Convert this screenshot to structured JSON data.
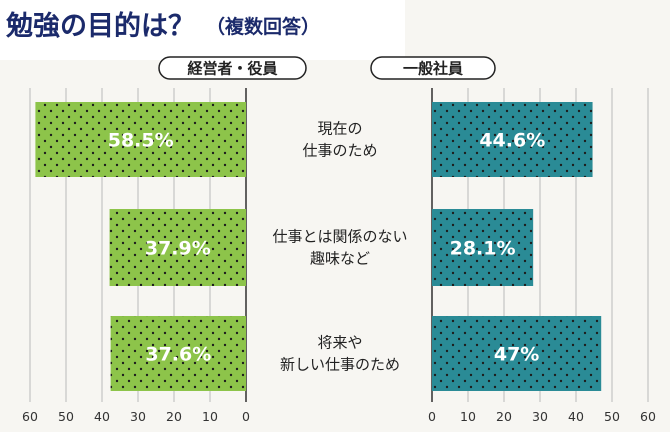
{
  "title": {
    "main": "勉強の目的は？",
    "sub": "（複数回答）"
  },
  "colors": {
    "left_bar": "#8dc44a",
    "right_bar": "#2a8b96",
    "dots": "#1d1d1d",
    "title": "#1b2a6b"
  },
  "chart_data": {
    "type": "bar",
    "orientation": "horizontal",
    "title": "勉強の目的は？（複数回答）",
    "categories": [
      [
        "現在の",
        "仕事のため"
      ],
      [
        "仕事とは関係のない",
        "趣味など"
      ],
      [
        "将来や",
        "新しい仕事のため"
      ]
    ],
    "series": [
      {
        "name": "経営者・役員",
        "values": [
          58.5,
          37.9,
          37.6
        ],
        "labels": [
          "58.5%",
          "37.9%",
          "37.6%"
        ]
      },
      {
        "name": "一般社員",
        "values": [
          44.6,
          28.1,
          47
        ],
        "labels": [
          "44.6%",
          "28.1%",
          "47%"
        ]
      }
    ],
    "xlim": [
      0,
      60
    ],
    "ticks": [
      "0",
      "10",
      "20",
      "30",
      "40",
      "50",
      "60"
    ],
    "left_ticks": [
      "60",
      "50",
      "40",
      "30",
      "20",
      "10",
      "0"
    ],
    "grid": true
  }
}
